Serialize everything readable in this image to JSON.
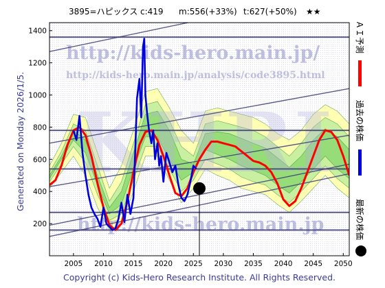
{
  "title": {
    "code": "3895=ハピックス",
    "current": "c:419",
    "mid": "m:556(+33%)",
    "target": "t:627(+50%)",
    "stars": "★★"
  },
  "side_labels": {
    "forecast": "ＡＩ予測",
    "past": "過去の株価",
    "latest": "最新の株価"
  },
  "generated": "Generated on Monday 2026/1/5.",
  "copyright": "Copyright (c) Kids-Hero Research Institute. All Rights Reserved.",
  "watermarks": {
    "url_main": "http://kids-hero.main.jp/",
    "url_analysis": "http://kids-hero.main.jp/analysis/code3895.html",
    "url_bottom": "http://kids-hero.main.jp",
    "big": "KHRI"
  },
  "colors": {
    "forecast": "#ff0000",
    "past": "#0000dd",
    "latest": "#000000",
    "band_outer": "#ffffb4",
    "band_mid": "#c8f0a0",
    "band_inner": "#96dc78",
    "band_line": "#2e8b2e",
    "channel": "#3c3c78"
  },
  "chart_data": {
    "type": "line",
    "xlim": [
      2001,
      2051
    ],
    "ylim": [
      0,
      1450
    ],
    "x_ticks": [
      2005,
      2010,
      2015,
      2020,
      2025,
      2030,
      2035,
      2040,
      2045,
      2050
    ],
    "y_ticks": [
      200,
      400,
      600,
      800,
      1000,
      1200,
      1400
    ],
    "horizontal_levels": [
      160,
      270,
      540,
      780,
      1360
    ],
    "trend_lines": [
      {
        "x": [
          2001,
          2051
        ],
        "y": [
          120,
          510
        ]
      },
      {
        "x": [
          2001,
          2051
        ],
        "y": [
          190,
          570
        ]
      },
      {
        "x": [
          2001,
          2051
        ],
        "y": [
          430,
          750
        ]
      },
      {
        "x": [
          2001,
          2051
        ],
        "y": [
          700,
          1040
        ]
      },
      {
        "x": [
          2001,
          2051
        ],
        "y": [
          1270,
          1660
        ]
      }
    ],
    "series": [
      {
        "name": "過去の株価",
        "x": [
          2005,
          2005.5,
          2006,
          2006.5,
          2007,
          2007.5,
          2008,
          2008.5,
          2009,
          2009.5,
          2010,
          2010.5,
          2011,
          2011.5,
          2012,
          2012.5,
          2013,
          2013.5,
          2014,
          2014.5,
          2015,
          2015.3,
          2015.6,
          2016,
          2016.3,
          2016.6,
          2016.8,
          2017,
          2017.3,
          2017.6,
          2018,
          2018.3,
          2018.6,
          2019,
          2019.3,
          2019.6,
          2020,
          2020.5,
          2021,
          2021.5,
          2022,
          2022.5,
          2023,
          2023.5,
          2024,
          2024.5,
          2025,
          2025.5
        ],
        "y": [
          780,
          720,
          870,
          640,
          500,
          380,
          300,
          260,
          230,
          180,
          300,
          200,
          180,
          160,
          170,
          230,
          330,
          210,
          380,
          260,
          360,
          650,
          980,
          1100,
          860,
          1300,
          1350,
          1000,
          880,
          780,
          700,
          780,
          600,
          700,
          560,
          620,
          460,
          640,
          580,
          520,
          560,
          440,
          360,
          340,
          380,
          460,
          560,
          540
        ]
      },
      {
        "name": "ＡＩ予測",
        "x": [
          2001,
          2002,
          2003,
          2004,
          2005,
          2006,
          2007,
          2008,
          2009,
          2010,
          2011,
          2012,
          2013,
          2014,
          2015,
          2016,
          2017,
          2018,
          2019,
          2020,
          2021,
          2022,
          2023,
          2024,
          2025,
          2026,
          2027,
          2028,
          2029,
          2030,
          2031,
          2032,
          2033,
          2034,
          2035,
          2036,
          2037,
          2038,
          2039,
          2040,
          2041,
          2042,
          2043,
          2044,
          2045,
          2046,
          2047,
          2048,
          2049,
          2050,
          2051
        ],
        "y": [
          440,
          470,
          560,
          690,
          780,
          800,
          750,
          620,
          450,
          300,
          190,
          160,
          200,
          340,
          520,
          690,
          770,
          780,
          720,
          620,
          500,
          390,
          370,
          420,
          520,
          600,
          660,
          710,
          710,
          700,
          690,
          680,
          650,
          620,
          590,
          580,
          560,
          520,
          450,
          350,
          310,
          340,
          420,
          520,
          620,
          720,
          780,
          770,
          720,
          620,
          500
        ]
      }
    ],
    "latest_point": {
      "x": 2026,
      "y": 419
    },
    "bands": {
      "x": [
        2001,
        2003,
        2005,
        2007,
        2009,
        2011,
        2013,
        2015,
        2017,
        2019,
        2021,
        2023,
        2025,
        2027,
        2029,
        2031,
        2033,
        2035,
        2037,
        2039,
        2041,
        2043,
        2045,
        2047,
        2049,
        2051
      ],
      "outer_low": [
        420,
        520,
        620,
        500,
        300,
        160,
        200,
        400,
        620,
        620,
        470,
        330,
        420,
        540,
        500,
        470,
        420,
        400,
        380,
        320,
        270,
        340,
        420,
        500,
        420,
        360
      ],
      "outer_high": [
        560,
        700,
        880,
        860,
        640,
        420,
        560,
        780,
        1020,
        1040,
        920,
        780,
        700,
        900,
        920,
        900,
        880,
        860,
        820,
        760,
        720,
        780,
        880,
        940,
        900,
        820
      ],
      "mid_low": [
        460,
        570,
        680,
        580,
        380,
        220,
        260,
        470,
        680,
        680,
        540,
        400,
        470,
        600,
        570,
        540,
        490,
        460,
        440,
        380,
        330,
        400,
        480,
        560,
        480,
        420
      ],
      "mid_high": [
        520,
        650,
        820,
        780,
        560,
        340,
        460,
        700,
        940,
        960,
        840,
        680,
        620,
        820,
        840,
        820,
        800,
        780,
        740,
        680,
        620,
        700,
        800,
        860,
        820,
        740
      ],
      "inner_low": [
        480,
        600,
        720,
        640,
        440,
        260,
        320,
        540,
        740,
        740,
        600,
        470,
        520,
        660,
        630,
        600,
        560,
        530,
        500,
        440,
        390,
        460,
        540,
        620,
        540,
        480
      ],
      "inner_high": [
        500,
        620,
        780,
        720,
        500,
        300,
        400,
        640,
        880,
        900,
        780,
        600,
        570,
        760,
        770,
        760,
        730,
        700,
        670,
        610,
        550,
        620,
        720,
        790,
        740,
        660
      ]
    }
  }
}
